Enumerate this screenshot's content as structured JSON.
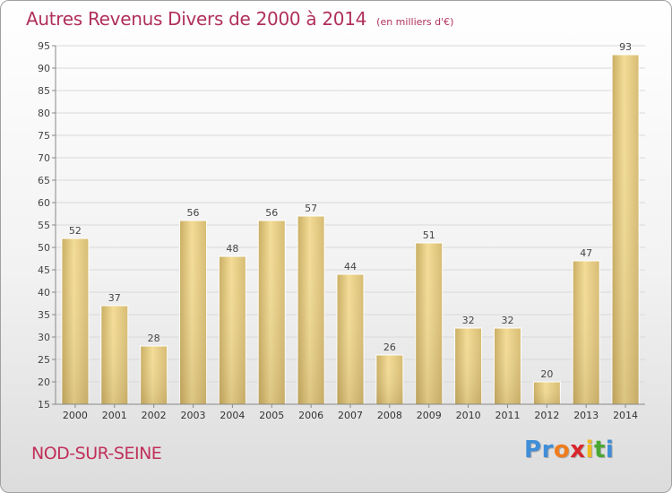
{
  "title": "Autres Revenus Divers de 2000 à 2014",
  "unit_label": "(en milliers d'€)",
  "place": "NOD-SUR-SEINE",
  "logo": {
    "text": "Proxiti",
    "letter_colors": [
      "#3f8ed8",
      "#3f8ed8",
      "#f07c1c",
      "#d7262c",
      "#f0b91c",
      "#4aa832",
      "#3f8ed8"
    ]
  },
  "colors": {
    "title": "#b0305a",
    "bar": "#d8bf78",
    "bar_light": "#f4dc94",
    "grid": "#d9d9d9",
    "axis": "#888888"
  },
  "chart_data": {
    "type": "bar",
    "categories": [
      "2000",
      "2001",
      "2002",
      "2003",
      "2004",
      "2005",
      "2006",
      "2007",
      "2008",
      "2009",
      "2010",
      "2011",
      "2012",
      "2013",
      "2014"
    ],
    "values": [
      52,
      37,
      28,
      56,
      48,
      56,
      57,
      44,
      26,
      51,
      32,
      32,
      20,
      47,
      93
    ],
    "ylim": [
      15,
      95
    ],
    "yticks": [
      15,
      20,
      25,
      30,
      35,
      40,
      45,
      50,
      55,
      60,
      65,
      70,
      75,
      80,
      85,
      90,
      95
    ],
    "grid": true,
    "title": "Autres Revenus Divers de 2000 à 2014",
    "xlabel": "",
    "ylabel": ""
  }
}
